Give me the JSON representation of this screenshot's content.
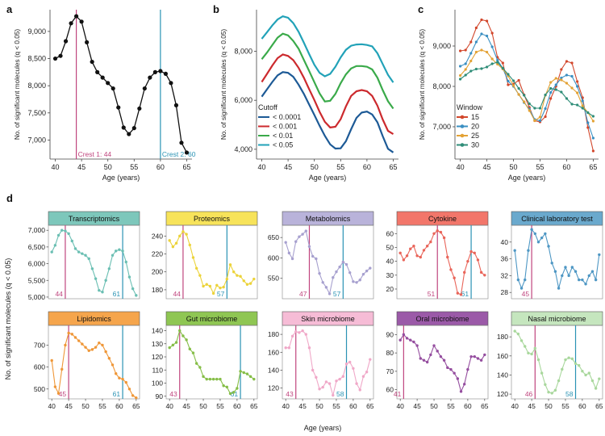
{
  "figure": {
    "panel_letters": [
      "a",
      "b",
      "c",
      "d"
    ],
    "y_axis_label": "No. of significant molecules (q < 0.05)",
    "x_axis_label": "Age (years)"
  },
  "colors": {
    "crest1": "#c0457e",
    "crest2": "#2a93b4",
    "panel_a_line": "#111111",
    "b_series": [
      "#1d5a96",
      "#cc2a2e",
      "#3aaa4a",
      "#22a2b8"
    ],
    "c_series": [
      "#d2472c",
      "#3a8fc2",
      "#e3a235",
      "#2f8d78"
    ]
  },
  "chart_data": [
    {
      "panel": "a",
      "type": "line",
      "x": [
        40,
        41,
        42,
        43,
        44,
        45,
        46,
        47,
        48,
        49,
        50,
        51,
        52,
        53,
        54,
        55,
        56,
        57,
        58,
        59,
        60,
        61,
        62,
        63,
        64,
        65
      ],
      "series": [
        {
          "values": [
            8500,
            8550,
            8820,
            9150,
            9280,
            9180,
            8800,
            8440,
            8250,
            8150,
            8050,
            7950,
            7600,
            7230,
            7110,
            7220,
            7580,
            7950,
            8150,
            8250,
            8270,
            8220,
            8050,
            7640,
            6950,
            6770
          ]
        }
      ],
      "xticks": [
        40,
        45,
        50,
        55,
        60,
        65
      ],
      "yticks": [
        7000,
        7500,
        8000,
        8500,
        9000
      ],
      "ytick_labels": [
        "7,000",
        "7,500",
        "8,000",
        "8,500",
        "9,000"
      ],
      "xlim": [
        39,
        66
      ],
      "ylim": [
        6650,
        9400
      ],
      "vlines": [
        {
          "x": 44,
          "label": "Crest 1: 44",
          "color": "crest1"
        },
        {
          "x": 60,
          "label": "Crest 2: 60",
          "color": "crest2"
        }
      ],
      "xlabel": "Age (years)",
      "ylabel": "No. of significant molecules (q < 0.05)"
    },
    {
      "panel": "b",
      "type": "line",
      "x": [
        40,
        41,
        42,
        43,
        44,
        45,
        46,
        47,
        48,
        49,
        50,
        51,
        52,
        53,
        54,
        55,
        56,
        57,
        58,
        59,
        60,
        61,
        62,
        63,
        64,
        65
      ],
      "series": [
        {
          "name": "< 0.0001",
          "values": [
            6150,
            6450,
            6750,
            7020,
            7150,
            7120,
            6960,
            6640,
            6260,
            5830,
            5400,
            4960,
            4550,
            4200,
            4030,
            4040,
            4330,
            4820,
            5280,
            5500,
            5540,
            5420,
            5100,
            4540,
            4020,
            3870
          ]
        },
        {
          "name": "< 0.001",
          "values": [
            6750,
            7080,
            7420,
            7720,
            7870,
            7810,
            7640,
            7330,
            6920,
            6460,
            6010,
            5530,
            5120,
            4890,
            4920,
            5230,
            5750,
            6180,
            6370,
            6420,
            6370,
            6180,
            5780,
            5220,
            4750,
            4620
          ]
        },
        {
          "name": "< 0.01",
          "values": [
            7680,
            7950,
            8260,
            8560,
            8720,
            8650,
            8420,
            8110,
            7650,
            7200,
            6740,
            6280,
            5950,
            5980,
            6260,
            6700,
            7060,
            7300,
            7400,
            7400,
            7370,
            7260,
            6920,
            6420,
            5960,
            5660
          ]
        },
        {
          "name": "< 0.05",
          "values": [
            8510,
            8780,
            9060,
            9300,
            9430,
            9370,
            9150,
            8800,
            8350,
            7890,
            7450,
            7120,
            6980,
            7080,
            7370,
            7750,
            8060,
            8230,
            8280,
            8290,
            8260,
            8200,
            7920,
            7480,
            7040,
            6730
          ]
        }
      ],
      "legend_title": "Cutoff",
      "legend_position": "lower-left",
      "xticks": [
        40,
        45,
        50,
        55,
        60,
        65
      ],
      "yticks": [
        4000,
        6000,
        8000
      ],
      "ytick_labels": [
        "4,000",
        "6,000",
        "8,000"
      ],
      "xlim": [
        39,
        66
      ],
      "ylim": [
        3600,
        9700
      ],
      "xlabel": "Age (years)",
      "ylabel": "No. of significant molecules (q < 0.05)"
    },
    {
      "panel": "c",
      "type": "line",
      "x": [
        40,
        41,
        42,
        43,
        44,
        45,
        46,
        47,
        48,
        49,
        50,
        51,
        52,
        53,
        54,
        55,
        56,
        57,
        58,
        59,
        60,
        61,
        62,
        63,
        64,
        65
      ],
      "series": [
        {
          "name": "15",
          "values": [
            8880,
            8900,
            9100,
            9450,
            9650,
            9620,
            9320,
            8720,
            8580,
            8040,
            8060,
            8150,
            7790,
            7480,
            7150,
            7120,
            7250,
            7700,
            8000,
            8420,
            8620,
            8580,
            8120,
            7720,
            6980,
            6400
          ]
        },
        {
          "name": "20",
          "values": [
            8500,
            8560,
            8820,
            9100,
            9300,
            9250,
            8980,
            8650,
            8450,
            8130,
            8000,
            7800,
            7600,
            7440,
            7180,
            7150,
            7450,
            7850,
            8040,
            8210,
            8280,
            8250,
            8000,
            7640,
            7100,
            6720
          ]
        },
        {
          "name": "25",
          "values": [
            8270,
            8420,
            8630,
            8850,
            8900,
            8850,
            8680,
            8550,
            8430,
            8260,
            8020,
            7800,
            7620,
            7400,
            7150,
            7240,
            7780,
            8100,
            8200,
            8160,
            8080,
            7960,
            7840,
            7520,
            7350,
            7140
          ]
        },
        {
          "name": "30",
          "values": [
            8180,
            8280,
            8380,
            8430,
            8440,
            8480,
            8560,
            8600,
            8450,
            8300,
            8140,
            7950,
            7780,
            7570,
            7460,
            7460,
            7790,
            7950,
            7920,
            7860,
            7700,
            7560,
            7540,
            7460,
            7350,
            7260
          ]
        }
      ],
      "legend_title": "Window",
      "legend_position": "lower-left",
      "xticks": [
        40,
        45,
        50,
        55,
        60,
        65
      ],
      "yticks": [
        7000,
        8000,
        9000
      ],
      "ytick_labels": [
        "7,000",
        "8,000",
        "9,000"
      ],
      "xlim": [
        39,
        66
      ],
      "ylim": [
        6200,
        9900
      ],
      "xlabel": "Age (years)",
      "ylabel": "No. of significant molecules (q < 0.05)"
    },
    {
      "panel": "d",
      "type": "line",
      "xlabel": "Age (years)",
      "ylabel": "No. of significant molecules (q < 0.05)",
      "xticks": [
        40,
        45,
        50,
        55,
        60,
        65
      ],
      "x": [
        40,
        41,
        42,
        43,
        44,
        45,
        46,
        47,
        48,
        49,
        50,
        51,
        52,
        53,
        54,
        55,
        56,
        57,
        58,
        59,
        60,
        61,
        62,
        63,
        64,
        65
      ],
      "subplots": [
        {
          "title": "Transcriptomics",
          "title_bg": "#7dc7bb",
          "color": "#6bbfb3",
          "crest1": 44,
          "crest2": 61,
          "yticks": [
            5000,
            5500,
            6000,
            6500,
            7000
          ],
          "ytick_labels": [
            "5,000",
            "5,500",
            "6,000",
            "6,500",
            "7,000"
          ],
          "ylim": [
            4950,
            7150
          ],
          "values": [
            6350,
            6550,
            6850,
            7000,
            6980,
            6900,
            6680,
            6450,
            6350,
            6300,
            6250,
            6150,
            5850,
            5550,
            5200,
            5150,
            5500,
            5850,
            6250,
            6380,
            6420,
            6380,
            6050,
            5600,
            5250,
            5050
          ]
        },
        {
          "title": "Proteomics",
          "title_bg": "#f7e35a",
          "color": "#ecd33a",
          "crest1": 44,
          "crest2": 57,
          "yticks": [
            180,
            200,
            220,
            240
          ],
          "ytick_labels": [
            "180",
            "200",
            "220",
            "240"
          ],
          "ylim": [
            170,
            252
          ],
          "values": [
            235,
            228,
            232,
            240,
            245,
            242,
            230,
            216,
            204,
            196,
            184,
            186,
            184,
            176,
            185,
            182,
            183,
            192,
            208,
            200,
            196,
            195,
            190,
            186,
            187,
            192
          ]
        },
        {
          "title": "Metabolomics",
          "title_bg": "#b9b3da",
          "color": "#a7a0cf",
          "crest1": 47,
          "crest2": 57,
          "yticks": [
            550,
            600,
            650
          ],
          "ytick_labels": [
            "550",
            "600",
            "650"
          ],
          "ylim": [
            500,
            680
          ],
          "values": [
            638,
            612,
            598,
            640,
            652,
            658,
            666,
            628,
            604,
            598,
            562,
            540,
            528,
            512,
            552,
            566,
            578,
            590,
            584,
            564,
            542,
            540,
            546,
            560,
            568,
            575
          ]
        },
        {
          "title": "Cytokine",
          "title_bg": "#f2766a",
          "color": "#e9655a",
          "crest1": 51,
          "crest2": 61,
          "yticks": [
            20,
            30,
            40,
            50,
            60
          ],
          "ytick_labels": [
            "20",
            "30",
            "40",
            "50",
            "60"
          ],
          "ylim": [
            13,
            66
          ],
          "values": [
            46,
            41,
            44,
            49,
            51,
            44,
            43,
            48,
            51,
            54,
            60,
            62,
            61,
            57,
            43,
            34,
            28,
            17,
            16,
            32,
            40,
            47,
            46,
            41,
            32,
            30
          ]
        },
        {
          "title": "Clinical laboratory test",
          "title_bg": "#6aa9cd",
          "color": "#4e97c4",
          "crest1": 45,
          "crest2": null,
          "yticks": [
            28,
            32,
            36,
            40
          ],
          "ytick_labels": [
            "28",
            "32",
            "36",
            "40"
          ],
          "ylim": [
            26.5,
            44
          ],
          "values": [
            38,
            31,
            29,
            31,
            38,
            43,
            42,
            40,
            41,
            42,
            39,
            35,
            33,
            29,
            32,
            34,
            32,
            34,
            33,
            31,
            31,
            30,
            32,
            33,
            31,
            37
          ]
        },
        {
          "title": "Lipidomics",
          "title_bg": "#f5a54c",
          "color": "#ef9738",
          "crest1": 45,
          "crest2": 61,
          "yticks": [
            500,
            600,
            700
          ],
          "ytick_labels": [
            "500",
            "600",
            "700"
          ],
          "ylim": [
            455,
            790
          ],
          "values": [
            630,
            510,
            480,
            590,
            700,
            755,
            750,
            735,
            720,
            705,
            690,
            675,
            680,
            690,
            710,
            700,
            670,
            640,
            610,
            570,
            550,
            545,
            530,
            500,
            470,
            460
          ]
        },
        {
          "title": "Gut microbiome",
          "title_bg": "#8fc653",
          "color": "#86be48",
          "crest1": 43,
          "crest2": 61,
          "yticks": [
            90,
            100,
            110,
            120,
            130,
            140
          ],
          "ytick_labels": [
            "90",
            "100",
            "110",
            "120",
            "130",
            "140"
          ],
          "ylim": [
            88,
            144
          ],
          "values": [
            127,
            129,
            131,
            140,
            136,
            133,
            126,
            123,
            115,
            112,
            105,
            103,
            103,
            103,
            103,
            103,
            98,
            97,
            92,
            93,
            96,
            109,
            108,
            107,
            105,
            103
          ]
        },
        {
          "title": "Skin microbiome",
          "title_bg": "#f6bcd6",
          "color": "#f0a8c8",
          "crest1": 43,
          "crest2": 58,
          "yticks": [
            120,
            140,
            160,
            180
          ],
          "ytick_labels": [
            "120",
            "140",
            "160",
            "180"
          ],
          "ylim": [
            108,
            190
          ],
          "values": [
            165,
            165,
            178,
            183,
            182,
            184,
            180,
            165,
            140,
            132,
            119,
            121,
            127,
            125,
            112,
            128,
            130,
            133,
            147,
            149,
            142,
            125,
            118,
            133,
            138,
            152
          ]
        },
        {
          "title": "Oral microbiome",
          "title_bg": "#9b5aa8",
          "color": "#954e9f",
          "crest1": 41,
          "crest2": null,
          "yticks": [
            60,
            70,
            80,
            90
          ],
          "ytick_labels": [
            "60",
            "70",
            "80",
            "90"
          ],
          "ylim": [
            55,
            95
          ],
          "values": [
            87,
            90,
            88,
            87,
            86,
            84,
            77,
            76,
            75,
            79,
            84,
            81,
            78,
            76,
            72,
            71,
            69,
            66,
            59,
            63,
            71,
            78,
            78,
            77,
            76,
            79
          ]
        },
        {
          "title": "Nasal microbiome",
          "title_bg": "#c5e6be",
          "color": "#a8d79c",
          "crest1": 46,
          "crest2": 58,
          "yticks": [
            120,
            140,
            160,
            180
          ],
          "ytick_labels": [
            "120",
            "140",
            "160",
            "180"
          ],
          "ylim": [
            115,
            192
          ],
          "values": [
            186,
            183,
            176,
            170,
            163,
            162,
            168,
            156,
            142,
            130,
            122,
            121,
            124,
            134,
            146,
            156,
            158,
            157,
            152,
            150,
            144,
            140,
            142,
            134,
            126,
            136
          ]
        }
      ]
    }
  ]
}
